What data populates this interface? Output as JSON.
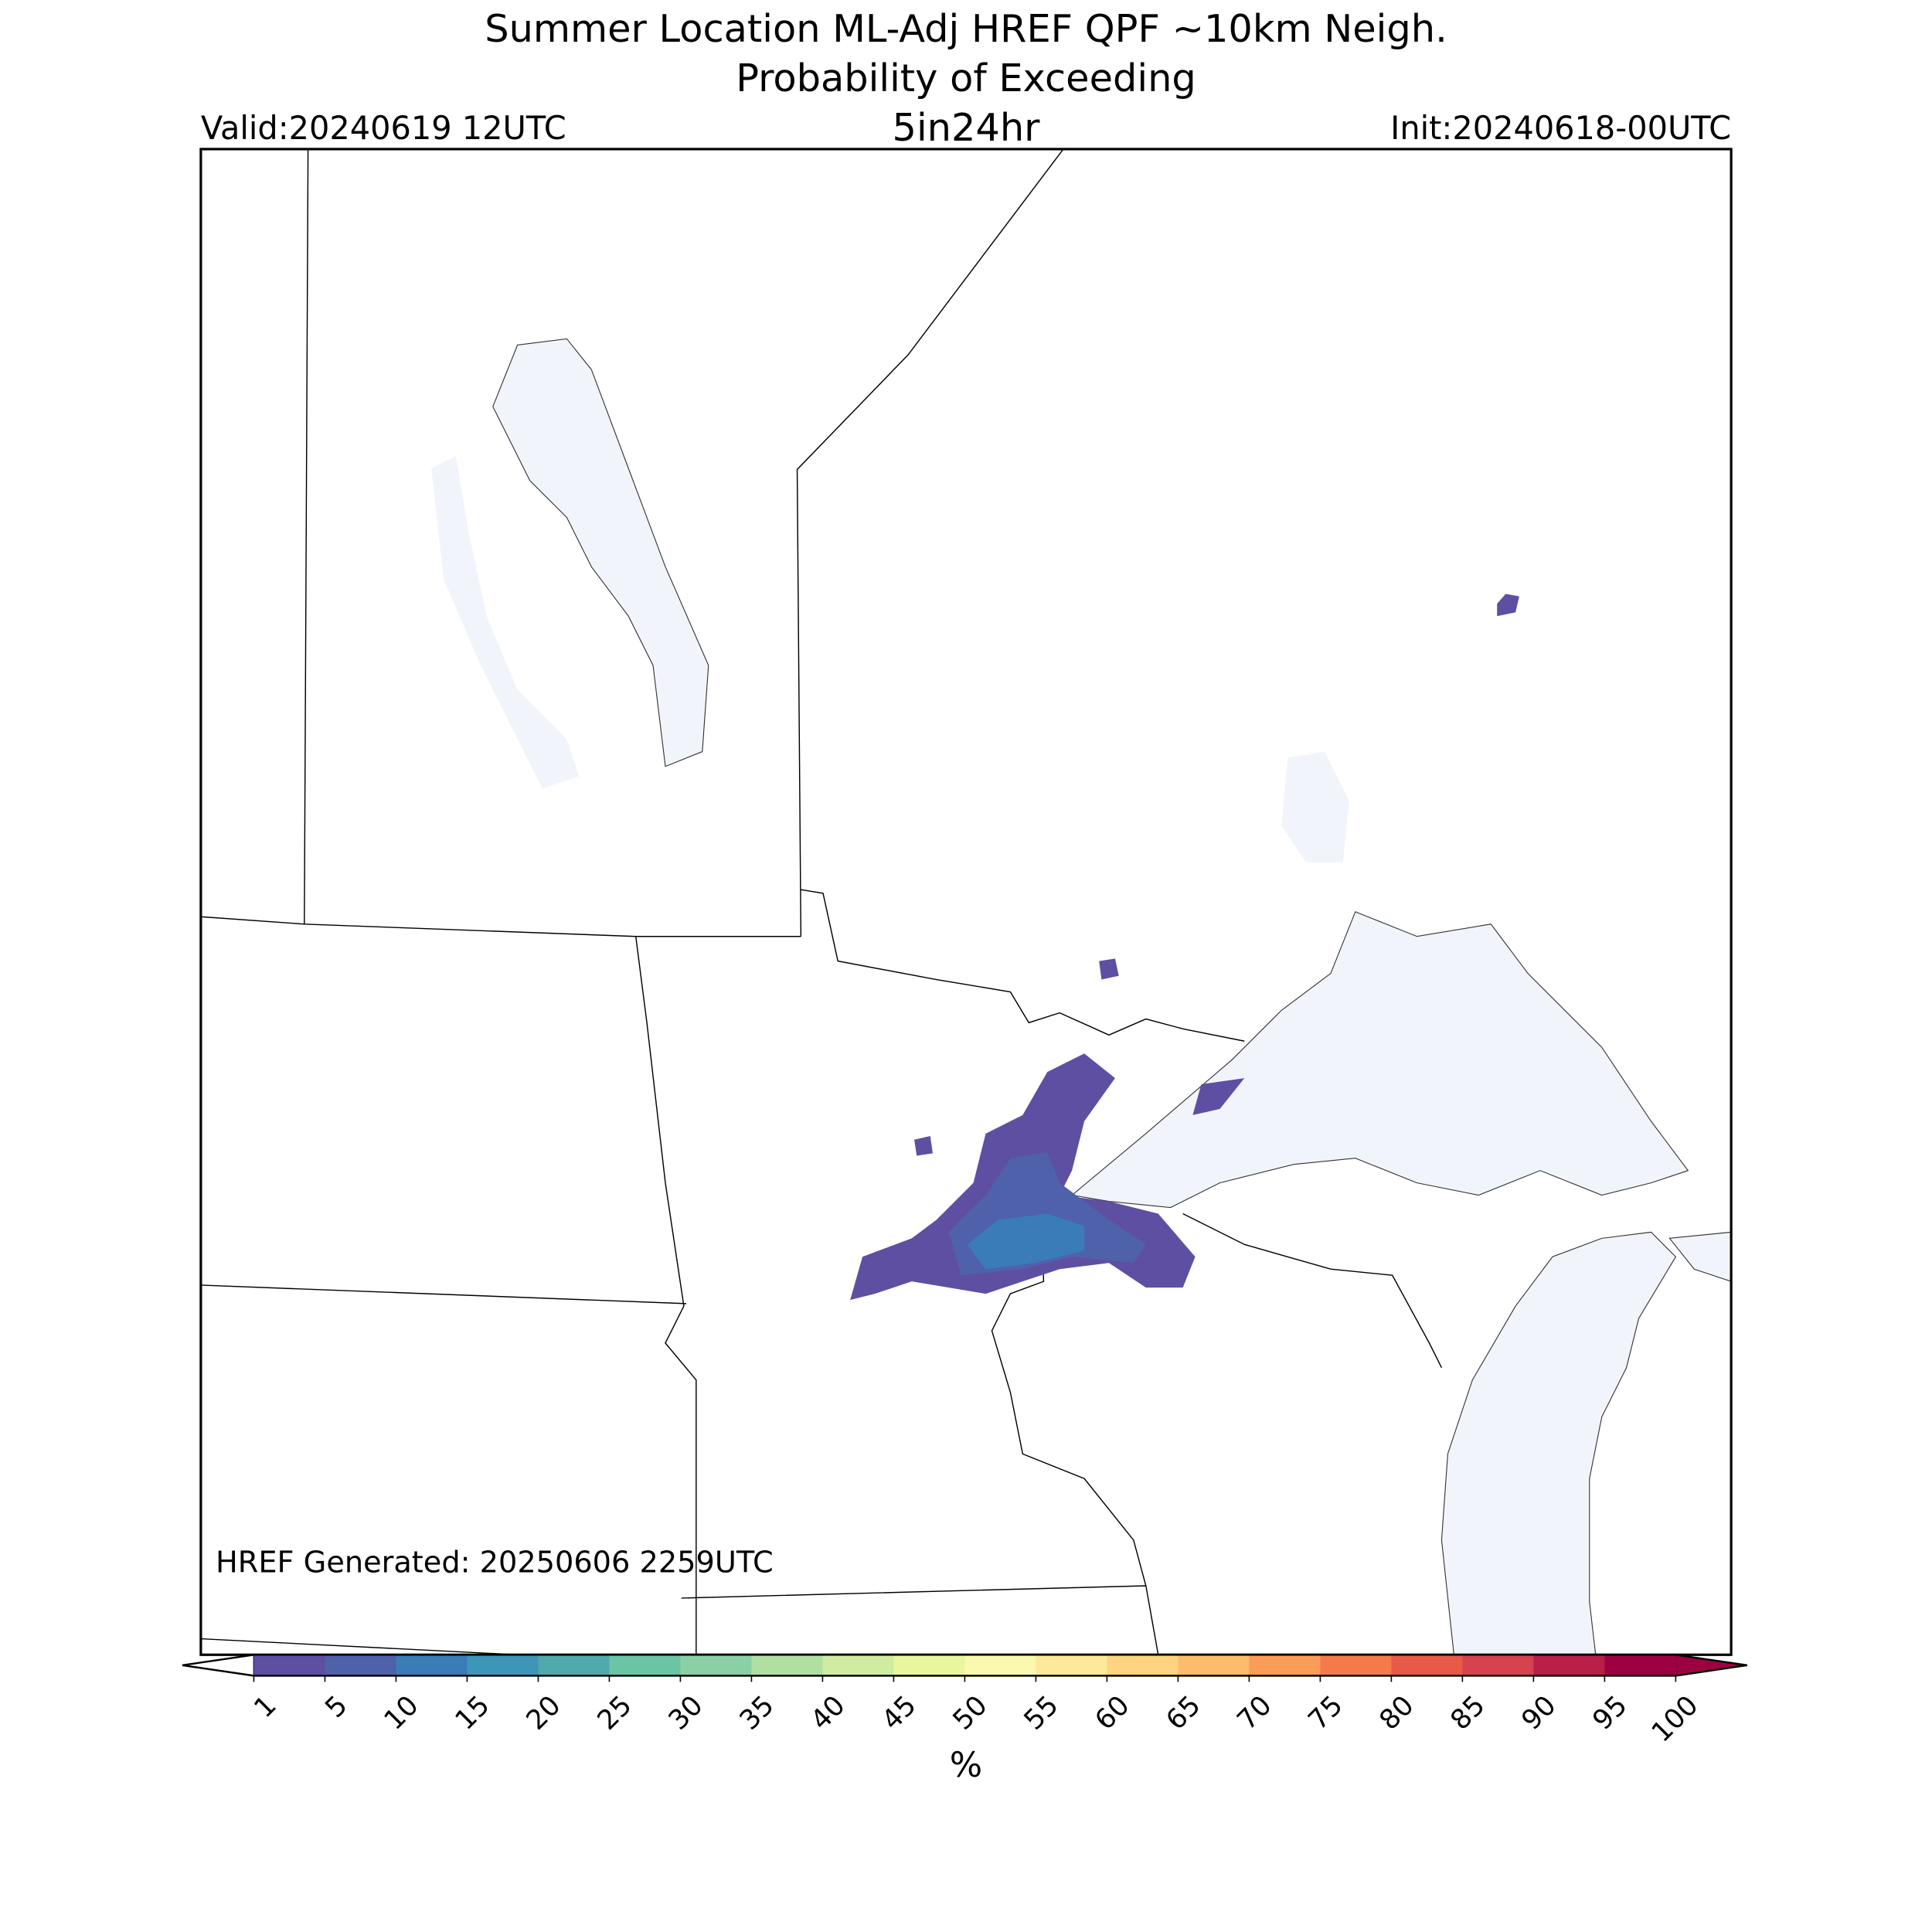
{
  "title": [
    "Summer Location ML-Adj HREF QPF ~10km Neigh.",
    "Probability of Exceeding"
  ],
  "subtitle": "5in24hr",
  "valid": "Valid:20240619 12UTC",
  "init": "Init:20240618-00UTC",
  "generated": "HREF Generated: 20250606 2259UTC",
  "colorbar": {
    "label": "%",
    "ticks": [
      1,
      5,
      10,
      15,
      20,
      25,
      30,
      35,
      40,
      45,
      50,
      55,
      60,
      65,
      70,
      75,
      80,
      85,
      90,
      95,
      100
    ],
    "colors": [
      "#5e4fa2",
      "#4f61aa",
      "#3a7cb8",
      "#3d95b8",
      "#52a9ad",
      "#6bc4a4",
      "#8ad0a4",
      "#b0dfa2",
      "#cfeca0",
      "#e9f69e",
      "#fbf8b0",
      "#fee89a",
      "#fed480",
      "#fdbc6c",
      "#fb9c59",
      "#f57a4b",
      "#e65a47",
      "#d4434e",
      "#b91f48",
      "#9e0142"
    ],
    "under_color": "#ffffff",
    "over_color": "#9e0142"
  }
}
